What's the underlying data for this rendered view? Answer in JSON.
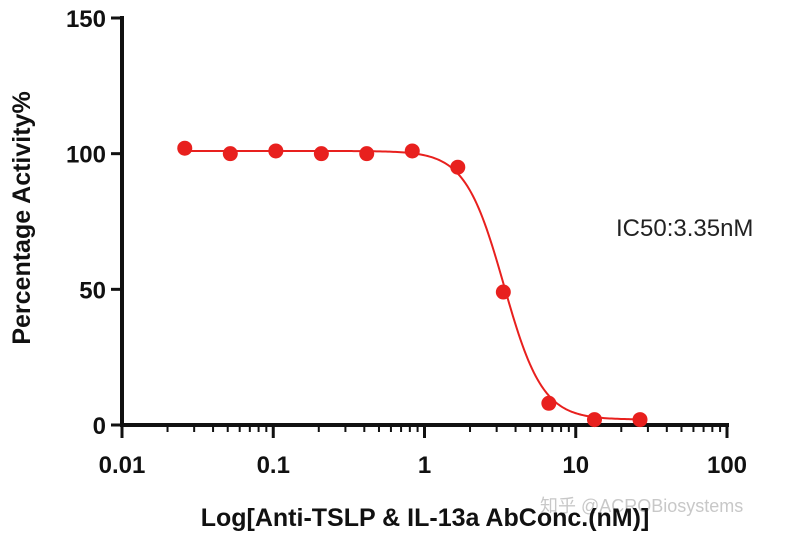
{
  "chart_data": {
    "type": "scatter",
    "title": "",
    "xlabel": "Log[Anti-TSLP & IL-13a AbConc.(nM)]",
    "ylabel": "Percentage Activity%",
    "x_scale": "log",
    "xlim": [
      0.01,
      100
    ],
    "ylim": [
      0,
      150
    ],
    "x_ticks": [
      0.01,
      0.1,
      1,
      10,
      100
    ],
    "x_tick_labels": [
      "0.01",
      "0.1",
      "1",
      "10",
      "100"
    ],
    "y_ticks": [
      0,
      50,
      100,
      150
    ],
    "y_tick_labels": [
      "0",
      "50",
      "100",
      "150"
    ],
    "grid": false,
    "series": [
      {
        "color": "#e8201e",
        "marker": "circle",
        "x": [
          0.026,
          0.052,
          0.104,
          0.208,
          0.415,
          0.83,
          1.66,
          3.32,
          6.64,
          13.3,
          26.6
        ],
        "y": [
          102,
          100,
          101,
          100,
          100,
          101,
          95,
          49,
          8,
          2,
          2
        ]
      }
    ],
    "fit_curve": {
      "color": "#e8201e",
      "top": 101,
      "bottom": 2,
      "ic50": 3.35,
      "hill_slope": 3.4
    },
    "annotations": [
      {
        "text": "IC50:3.35nM"
      }
    ]
  },
  "watermark": {
    "text": "知乎 @ACROBiosystems"
  }
}
